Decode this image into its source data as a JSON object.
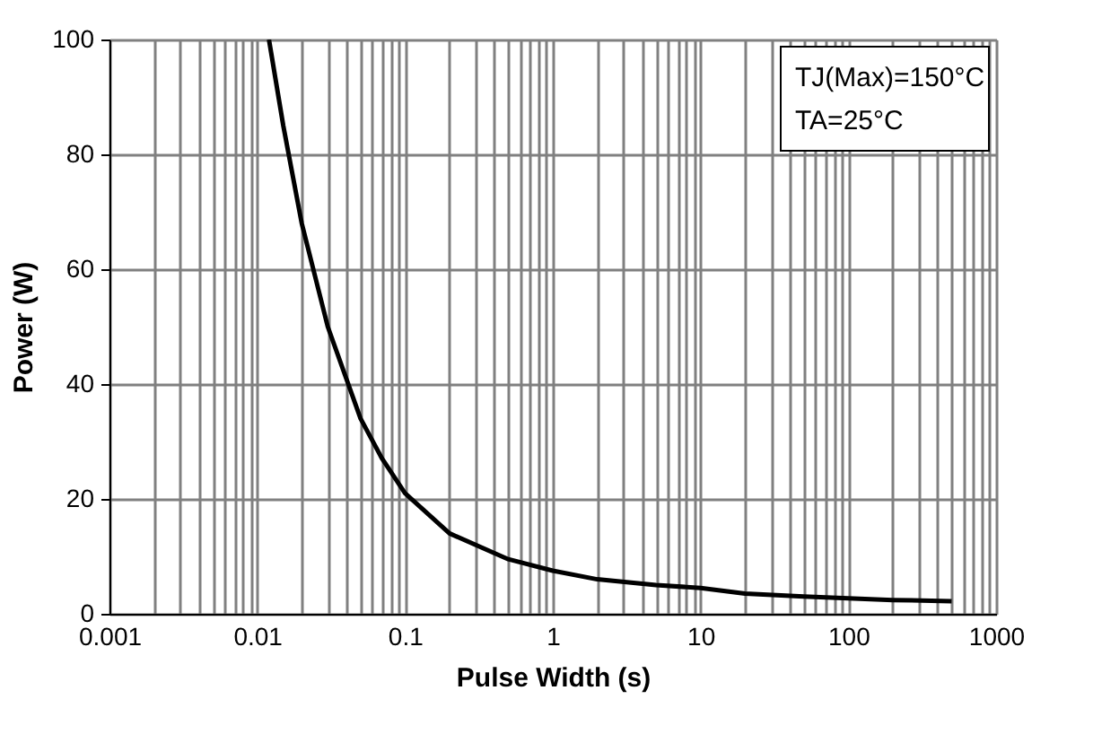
{
  "chart_data": {
    "type": "line",
    "xlabel": "Pulse Width (s)",
    "ylabel": "Power (W)",
    "log": "x",
    "grid": true,
    "line_style": "solid",
    "marker": "none",
    "annotations": [
      "TJ(Max)=150°C",
      "TA=25°C"
    ],
    "xlim": [
      0.001,
      1000
    ],
    "ylim": [
      0,
      100
    ],
    "yticks": [
      0,
      20,
      40,
      60,
      80,
      100
    ],
    "xticks": [
      0.001,
      {
        "value": 0.002,
        "label": null
      },
      {
        "value": 0.003,
        "label": null
      },
      {
        "value": 0.004,
        "label": null
      },
      {
        "value": 0.005,
        "label": null
      },
      {
        "value": 0.006,
        "label": null
      },
      {
        "value": 0.007,
        "label": null
      },
      {
        "value": 0.008,
        "label": null
      },
      {
        "value": 0.009,
        "label": null
      },
      0.01,
      {
        "value": 0.02,
        "label": null
      },
      {
        "value": 0.03,
        "label": null
      },
      {
        "value": 0.04,
        "label": null
      },
      {
        "value": 0.05,
        "label": null
      },
      {
        "value": 0.06,
        "label": null
      },
      {
        "value": 0.07,
        "label": null
      },
      {
        "value": 0.08,
        "label": null
      },
      {
        "value": 0.09,
        "label": null
      },
      0.1,
      {
        "value": 0.2,
        "label": null
      },
      {
        "value": 0.3,
        "label": null
      },
      {
        "value": 0.4,
        "label": null
      },
      {
        "value": 0.5,
        "label": null
      },
      {
        "value": 0.6,
        "label": null
      },
      {
        "value": 0.7,
        "label": null
      },
      {
        "value": 0.8,
        "label": null
      },
      {
        "value": 0.9,
        "label": null
      },
      1,
      {
        "value": 2,
        "label": null
      },
      {
        "value": 3,
        "label": null
      },
      {
        "value": 4,
        "label": null
      },
      {
        "value": 5,
        "label": null
      },
      {
        "value": 6,
        "label": null
      },
      {
        "value": 7,
        "label": null
      },
      {
        "value": 8,
        "label": null
      },
      {
        "value": 9,
        "label": null
      },
      10,
      {
        "value": 20,
        "label": null
      },
      {
        "value": 30,
        "label": null
      },
      {
        "value": 40,
        "label": null
      },
      {
        "value": 50,
        "label": null
      },
      {
        "value": 60,
        "label": null
      },
      {
        "value": 70,
        "label": null
      },
      {
        "value": 80,
        "label": null
      },
      {
        "value": 90,
        "label": null
      },
      100,
      {
        "value": 200,
        "label": null
      },
      {
        "value": 300,
        "label": null
      },
      {
        "value": 400,
        "label": null
      },
      {
        "value": 500,
        "label": null
      },
      {
        "value": 600,
        "label": null
      },
      {
        "value": 700,
        "label": null
      },
      {
        "value": 800,
        "label": null
      },
      {
        "value": 900,
        "label": null
      },
      1000
    ],
    "series": [
      {
        "color": "#000000",
        "x": [
          0.012,
          0.015,
          0.02,
          0.03,
          0.05,
          0.07,
          0.1,
          0.2,
          0.5,
          1,
          2,
          5,
          10,
          20,
          50,
          100,
          200,
          500
        ],
        "values": [
          100,
          85,
          68,
          50,
          34,
          27,
          21,
          14,
          9.5,
          7.5,
          6,
          5,
          4.5,
          3.5,
          3,
          2.7,
          2.4,
          2.2
        ]
      }
    ]
  }
}
